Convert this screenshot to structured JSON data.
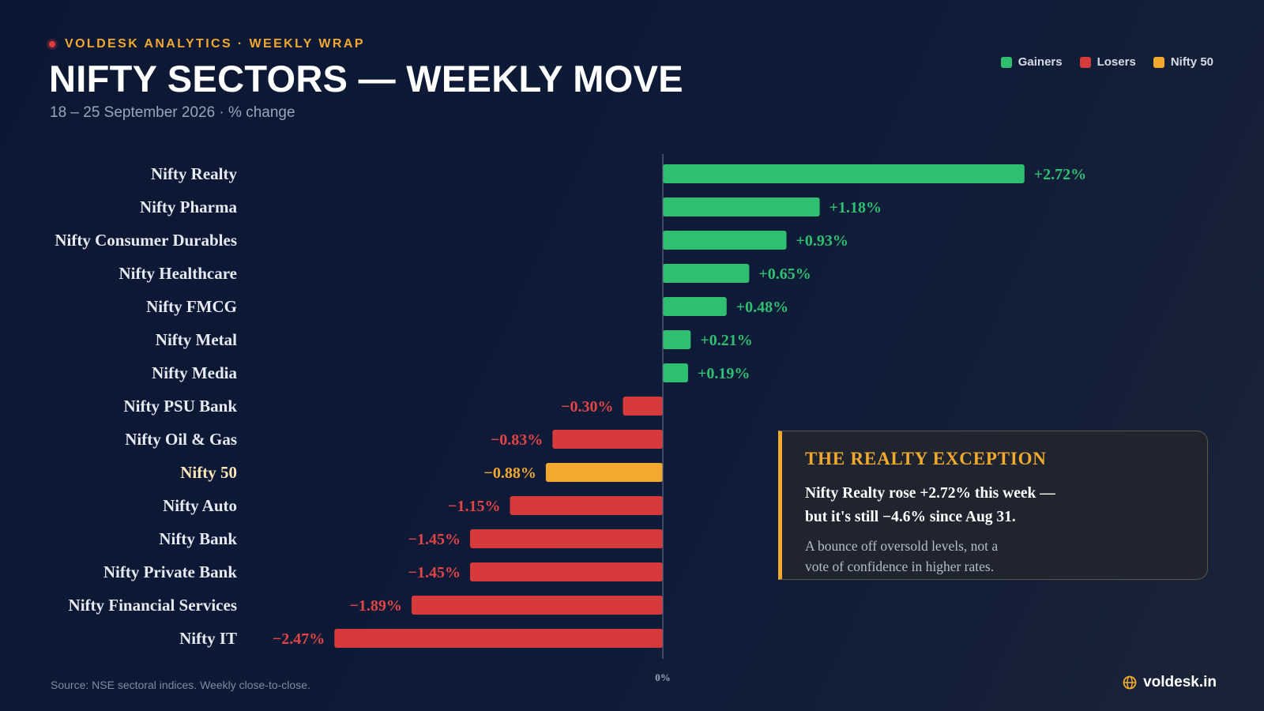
{
  "header": {
    "kicker": "VOLDESK ANALYTICS · WEEKLY WRAP",
    "title": "NIFTY SECTORS — WEEKLY MOVE",
    "subtitle": "18 – 25 September 2026 · % change"
  },
  "legend": [
    {
      "label": "Gainers",
      "color": "#2fbf71"
    },
    {
      "label": "Losers",
      "color": "#d63a3a"
    },
    {
      "label": "Nifty 50",
      "color": "#f2a92e"
    }
  ],
  "colors": {
    "gainer": "#2fbf71",
    "loser": "#d63a3a",
    "benchmark": "#f2a92e",
    "gainer_label": "#2fbf71",
    "loser_label": "#e14545"
  },
  "chart_data": {
    "type": "bar",
    "orientation": "horizontal",
    "unit": "%",
    "baseline_label": "0%",
    "categories": [
      "Nifty Realty",
      "Nifty Pharma",
      "Nifty Consumer Durables",
      "Nifty Healthcare",
      "Nifty FMCG",
      "Nifty Metal",
      "Nifty Media",
      "Nifty PSU Bank",
      "Nifty Oil & Gas",
      "Nifty 50",
      "Nifty Auto",
      "Nifty Bank",
      "Nifty Private Bank",
      "Nifty Financial Services",
      "Nifty IT"
    ],
    "values": [
      2.72,
      1.18,
      0.93,
      0.65,
      0.48,
      0.21,
      0.19,
      -0.3,
      -0.83,
      -0.88,
      -1.15,
      -1.45,
      -1.45,
      -1.89,
      -2.47
    ],
    "value_labels": [
      "+2.72%",
      "+1.18%",
      "+0.93%",
      "+0.65%",
      "+0.48%",
      "+0.21%",
      "+0.19%",
      "−0.30%",
      "−0.83%",
      "−0.88%",
      "−1.15%",
      "−1.45%",
      "−1.45%",
      "−1.89%",
      "−2.47%"
    ],
    "highlight": "Nifty 50",
    "xlim": [
      -3.0,
      3.0
    ]
  },
  "callout": {
    "title": "THE REALTY EXCEPTION",
    "headline": "Nifty Realty rose +2.72% this week — but it's still −4.6% since Aug 31.",
    "body": "A bounce off oversold levels, not a vote of confidence in higher rates."
  },
  "footer": {
    "source": "Source: NSE sectoral indices. Weekly close-to-close.",
    "brand": "voldesk.in",
    "brand_icon": "globe-icon"
  }
}
